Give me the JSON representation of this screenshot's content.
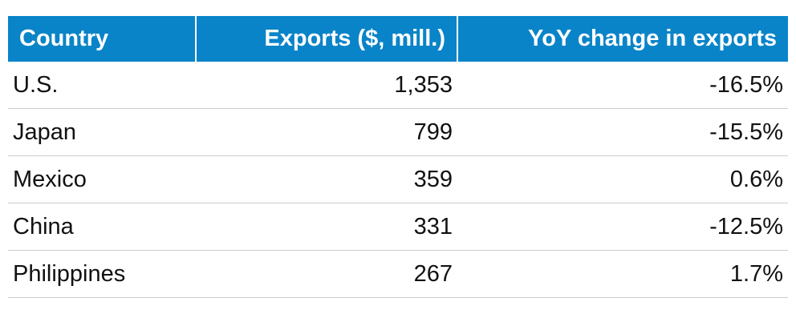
{
  "table": {
    "header": [
      "Country",
      "Exports ($, mill.)",
      "YoY change in exports"
    ],
    "rows": [
      [
        "U.S.",
        "1,353",
        "-16.5%"
      ],
      [
        "Japan",
        "799",
        "-15.5%"
      ],
      [
        "Mexico",
        "359",
        "0.6%"
      ],
      [
        "China",
        "331",
        "-12.5%"
      ],
      [
        "Philippines",
        "267",
        "1.7%"
      ]
    ]
  }
}
